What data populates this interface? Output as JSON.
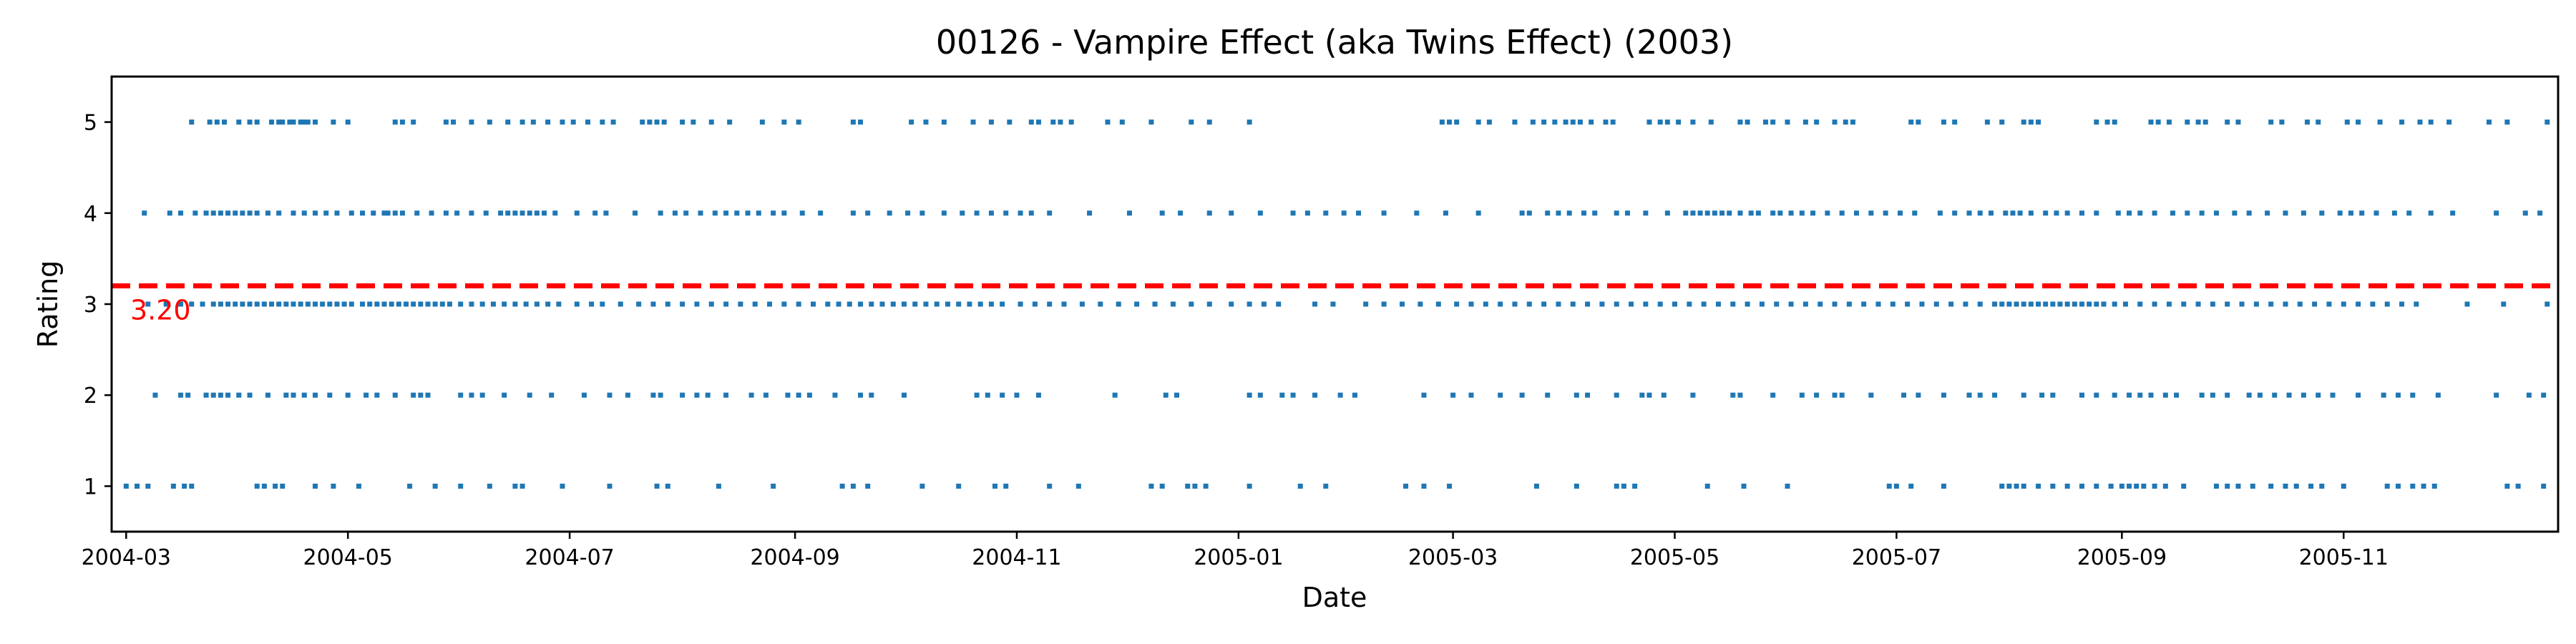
{
  "chart_data": {
    "type": "scatter",
    "title": "00126 - Vampire Effect (aka Twins Effect) (2003)",
    "xlabel": "Date",
    "ylabel": "Rating",
    "xlim": [
      "2004-02-26",
      "2005-12-30"
    ],
    "ylim": [
      0.5,
      5.5
    ],
    "x_ticks": [
      "2004-03",
      "2004-05",
      "2004-07",
      "2004-09",
      "2004-11",
      "2005-01",
      "2005-03",
      "2005-05",
      "2005-07",
      "2005-09",
      "2005-11"
    ],
    "y_ticks": [
      "1",
      "2",
      "3",
      "4",
      "5"
    ],
    "grid": false,
    "mean_line": {
      "value": 3.2,
      "label": "3.20"
    },
    "colors": {
      "points": "#1f77b4",
      "mean_line": "#ff0000"
    },
    "series": [
      {
        "y": 5,
        "x": [
          "2004-03-19",
          "2004-03-24",
          "2004-03-26",
          "2004-03-28",
          "2004-04-01",
          "2004-04-04",
          "2004-04-06",
          "2004-04-10",
          "2004-04-12",
          "2004-04-13",
          "2004-04-15",
          "2004-04-16",
          "2004-04-18",
          "2004-04-19",
          "2004-04-20",
          "2004-04-22",
          "2004-04-27",
          "2004-05-01",
          "2004-05-14",
          "2004-05-16",
          "2004-05-19",
          "2004-05-28",
          "2004-05-30",
          "2004-06-04",
          "2004-06-09",
          "2004-06-14",
          "2004-06-18",
          "2004-06-21",
          "2004-06-25",
          "2004-06-29",
          "2004-07-02",
          "2004-07-06",
          "2004-07-10",
          "2004-07-13",
          "2004-07-21",
          "2004-07-23",
          "2004-07-25",
          "2004-07-27",
          "2004-08-01",
          "2004-08-04",
          "2004-08-09",
          "2004-08-14",
          "2004-08-23",
          "2004-08-29",
          "2004-09-02",
          "2004-09-17",
          "2004-09-19",
          "2004-10-03",
          "2004-10-07",
          "2004-10-12",
          "2004-10-20",
          "2004-10-25",
          "2004-10-30",
          "2004-11-05",
          "2004-11-07",
          "2004-11-11",
          "2004-11-13",
          "2004-11-16",
          "2004-11-26",
          "2004-11-30",
          "2004-12-08",
          "2004-12-19",
          "2004-12-24",
          "2005-01-04",
          "2005-02-26",
          "2005-02-28",
          "2005-03-02",
          "2005-03-08",
          "2005-03-11",
          "2005-03-18",
          "2005-03-23",
          "2005-03-26",
          "2005-03-29",
          "2005-04-01",
          "2005-04-03",
          "2005-04-05",
          "2005-04-08",
          "2005-04-12",
          "2005-04-14",
          "2005-04-24",
          "2005-04-27",
          "2005-04-29",
          "2005-05-02",
          "2005-05-06",
          "2005-05-11",
          "2005-05-19",
          "2005-05-21",
          "2005-05-26",
          "2005-05-28",
          "2005-06-01",
          "2005-06-06",
          "2005-06-09",
          "2005-06-14",
          "2005-06-17",
          "2005-06-19",
          "2005-07-05",
          "2005-07-07",
          "2005-07-14",
          "2005-07-17",
          "2005-07-26",
          "2005-07-30",
          "2005-08-05",
          "2005-08-07",
          "2005-08-09",
          "2005-08-25",
          "2005-08-28",
          "2005-08-30",
          "2005-09-09",
          "2005-09-11",
          "2005-09-14",
          "2005-09-19",
          "2005-09-22",
          "2005-09-24",
          "2005-09-30",
          "2005-10-03",
          "2005-10-12",
          "2005-10-15",
          "2005-10-22",
          "2005-10-25",
          "2005-11-02",
          "2005-11-05",
          "2005-11-11",
          "2005-11-17",
          "2005-11-22",
          "2005-11-25",
          "2005-11-30",
          "2005-12-11",
          "2005-12-16",
          "2005-12-27"
        ]
      },
      {
        "y": 4,
        "x": [
          "2004-03-06",
          "2004-03-13",
          "2004-03-16",
          "2004-03-20",
          "2004-03-23",
          "2004-03-25",
          "2004-03-27",
          "2004-03-29",
          "2004-03-31",
          "2004-04-02",
          "2004-04-04",
          "2004-04-06",
          "2004-04-09",
          "2004-04-12",
          "2004-04-16",
          "2004-04-19",
          "2004-04-22",
          "2004-04-25",
          "2004-04-28",
          "2004-05-02",
          "2004-05-05",
          "2004-05-08",
          "2004-05-11",
          "2004-05-12",
          "2004-05-14",
          "2004-05-16",
          "2004-05-20",
          "2004-05-24",
          "2004-05-28",
          "2004-05-31",
          "2004-06-04",
          "2004-06-08",
          "2004-06-12",
          "2004-06-14",
          "2004-06-16",
          "2004-06-18",
          "2004-06-20",
          "2004-06-22",
          "2004-06-24",
          "2004-06-27",
          "2004-07-03",
          "2004-07-08",
          "2004-07-11",
          "2004-07-19",
          "2004-07-26",
          "2004-07-30",
          "2004-08-02",
          "2004-08-06",
          "2004-08-10",
          "2004-08-13",
          "2004-08-16",
          "2004-08-19",
          "2004-08-22",
          "2004-08-26",
          "2004-08-29",
          "2004-09-03",
          "2004-09-08",
          "2004-09-17",
          "2004-09-21",
          "2004-09-27",
          "2004-10-02",
          "2004-10-06",
          "2004-10-12",
          "2004-10-17",
          "2004-10-21",
          "2004-10-25",
          "2004-10-29",
          "2004-11-02",
          "2004-11-05",
          "2004-11-10",
          "2004-11-21",
          "2004-12-02",
          "2004-12-11",
          "2004-12-16",
          "2004-12-24",
          "2004-12-30",
          "2005-01-07",
          "2005-01-16",
          "2005-01-20",
          "2005-01-25",
          "2005-01-30",
          "2005-02-03",
          "2005-02-10",
          "2005-02-19",
          "2005-02-27",
          "2005-03-08",
          "2005-03-20",
          "2005-03-22",
          "2005-03-27",
          "2005-03-30",
          "2005-04-02",
          "2005-04-06",
          "2005-04-09",
          "2005-04-15",
          "2005-04-18",
          "2005-04-23",
          "2005-04-29",
          "2005-05-04",
          "2005-05-06",
          "2005-05-08",
          "2005-05-10",
          "2005-05-12",
          "2005-05-14",
          "2005-05-16",
          "2005-05-19",
          "2005-05-22",
          "2005-05-24",
          "2005-05-28",
          "2005-05-30",
          "2005-06-02",
          "2005-06-05",
          "2005-06-08",
          "2005-06-12",
          "2005-06-16",
          "2005-06-20",
          "2005-06-24",
          "2005-06-28",
          "2005-07-02",
          "2005-07-06",
          "2005-07-13",
          "2005-07-17",
          "2005-07-21",
          "2005-07-24",
          "2005-07-27",
          "2005-07-31",
          "2005-08-02",
          "2005-08-04",
          "2005-08-07",
          "2005-08-11",
          "2005-08-14",
          "2005-08-17",
          "2005-08-21",
          "2005-08-25",
          "2005-08-31",
          "2005-09-03",
          "2005-09-06",
          "2005-09-10",
          "2005-09-15",
          "2005-09-19",
          "2005-09-23",
          "2005-09-27",
          "2005-10-02",
          "2005-10-06",
          "2005-10-11",
          "2005-10-16",
          "2005-10-21",
          "2005-10-26",
          "2005-10-31",
          "2005-11-03",
          "2005-11-06",
          "2005-11-10",
          "2005-11-15",
          "2005-11-19",
          "2005-11-25",
          "2005-12-01",
          "2005-12-13",
          "2005-12-21",
          "2005-12-25"
        ]
      },
      {
        "y": 3,
        "x": [
          "2004-03-07",
          "2004-03-12",
          "2004-03-16",
          "2004-03-19",
          "2004-03-22",
          "2004-03-25",
          "2004-03-27",
          "2004-03-29",
          "2004-03-31",
          "2004-04-02",
          "2004-04-04",
          "2004-04-06",
          "2004-04-08",
          "2004-04-10",
          "2004-04-12",
          "2004-04-14",
          "2004-04-16",
          "2004-04-18",
          "2004-04-20",
          "2004-04-22",
          "2004-04-24",
          "2004-04-26",
          "2004-04-28",
          "2004-04-30",
          "2004-05-02",
          "2004-05-05",
          "2004-05-07",
          "2004-05-09",
          "2004-05-11",
          "2004-05-13",
          "2004-05-15",
          "2004-05-17",
          "2004-05-19",
          "2004-05-21",
          "2004-05-23",
          "2004-05-25",
          "2004-05-27",
          "2004-05-29",
          "2004-06-01",
          "2004-06-04",
          "2004-06-07",
          "2004-06-10",
          "2004-06-13",
          "2004-06-16",
          "2004-06-19",
          "2004-06-22",
          "2004-06-25",
          "2004-06-28",
          "2004-07-03",
          "2004-07-07",
          "2004-07-10",
          "2004-07-15",
          "2004-07-20",
          "2004-07-24",
          "2004-07-28",
          "2004-08-01",
          "2004-08-05",
          "2004-08-09",
          "2004-08-13",
          "2004-08-17",
          "2004-08-21",
          "2004-08-25",
          "2004-08-29",
          "2004-09-02",
          "2004-09-06",
          "2004-09-10",
          "2004-09-13",
          "2004-09-16",
          "2004-09-19",
          "2004-09-22",
          "2004-09-25",
          "2004-09-28",
          "2004-10-01",
          "2004-10-04",
          "2004-10-07",
          "2004-10-10",
          "2004-10-13",
          "2004-10-16",
          "2004-10-19",
          "2004-10-22",
          "2004-10-25",
          "2004-10-28",
          "2004-11-02",
          "2004-11-06",
          "2004-11-10",
          "2004-11-14",
          "2004-11-19",
          "2004-11-24",
          "2004-11-29",
          "2004-12-04",
          "2004-12-09",
          "2004-12-14",
          "2004-12-19",
          "2004-12-24",
          "2004-12-30",
          "2005-01-04",
          "2005-01-08",
          "2005-01-12",
          "2005-01-22",
          "2005-01-27",
          "2005-02-05",
          "2005-02-10",
          "2005-02-15",
          "2005-02-20",
          "2005-02-25",
          "2005-03-02",
          "2005-03-06",
          "2005-03-10",
          "2005-03-14",
          "2005-03-18",
          "2005-03-22",
          "2005-03-26",
          "2005-03-30",
          "2005-04-03",
          "2005-04-07",
          "2005-04-11",
          "2005-04-15",
          "2005-04-19",
          "2005-04-23",
          "2005-04-27",
          "2005-05-01",
          "2005-05-05",
          "2005-05-09",
          "2005-05-13",
          "2005-05-17",
          "2005-05-21",
          "2005-05-25",
          "2005-05-29",
          "2005-06-02",
          "2005-06-06",
          "2005-06-10",
          "2005-06-14",
          "2005-06-18",
          "2005-06-22",
          "2005-06-26",
          "2005-06-30",
          "2005-07-04",
          "2005-07-08",
          "2005-07-12",
          "2005-07-16",
          "2005-07-20",
          "2005-07-24",
          "2005-07-28",
          "2005-07-30",
          "2005-08-01",
          "2005-08-03",
          "2005-08-05",
          "2005-08-07",
          "2005-08-09",
          "2005-08-11",
          "2005-08-13",
          "2005-08-15",
          "2005-08-17",
          "2005-08-19",
          "2005-08-21",
          "2005-08-23",
          "2005-08-25",
          "2005-08-27",
          "2005-08-30",
          "2005-09-02",
          "2005-09-06",
          "2005-09-10",
          "2005-09-14",
          "2005-09-18",
          "2005-09-22",
          "2005-09-26",
          "2005-09-30",
          "2005-10-04",
          "2005-10-08",
          "2005-10-12",
          "2005-10-16",
          "2005-10-20",
          "2005-10-24",
          "2005-10-28",
          "2005-11-01",
          "2005-11-05",
          "2005-11-09",
          "2005-11-13",
          "2005-11-17",
          "2005-11-21",
          "2005-12-05",
          "2005-12-15",
          "2005-12-27"
        ]
      },
      {
        "y": 2,
        "x": [
          "2004-03-09",
          "2004-03-16",
          "2004-03-18",
          "2004-03-23",
          "2004-03-25",
          "2004-03-27",
          "2004-03-29",
          "2004-04-01",
          "2004-04-04",
          "2004-04-09",
          "2004-04-14",
          "2004-04-16",
          "2004-04-19",
          "2004-04-22",
          "2004-04-26",
          "2004-05-01",
          "2004-05-06",
          "2004-05-09",
          "2004-05-14",
          "2004-05-19",
          "2004-05-21",
          "2004-05-23",
          "2004-06-01",
          "2004-06-04",
          "2004-06-07",
          "2004-06-13",
          "2004-06-20",
          "2004-06-26",
          "2004-07-05",
          "2004-07-12",
          "2004-07-17",
          "2004-07-24",
          "2004-07-26",
          "2004-08-01",
          "2004-08-05",
          "2004-08-08",
          "2004-08-13",
          "2004-08-20",
          "2004-08-24",
          "2004-08-30",
          "2004-09-02",
          "2004-09-05",
          "2004-09-12",
          "2004-09-19",
          "2004-09-22",
          "2004-10-01",
          "2004-10-21",
          "2004-10-24",
          "2004-10-28",
          "2004-11-01",
          "2004-11-07",
          "2004-11-28",
          "2004-12-12",
          "2004-12-15",
          "2005-01-04",
          "2005-01-07",
          "2005-01-13",
          "2005-01-16",
          "2005-01-22",
          "2005-01-29",
          "2005-02-02",
          "2005-02-21",
          "2005-03-01",
          "2005-03-06",
          "2005-03-14",
          "2005-03-20",
          "2005-03-27",
          "2005-04-04",
          "2005-04-07",
          "2005-04-15",
          "2005-04-22",
          "2005-04-24",
          "2005-04-28",
          "2005-05-06",
          "2005-05-17",
          "2005-05-19",
          "2005-05-28",
          "2005-06-05",
          "2005-06-09",
          "2005-06-14",
          "2005-06-16",
          "2005-06-24",
          "2005-07-03",
          "2005-07-07",
          "2005-07-14",
          "2005-07-21",
          "2005-07-24",
          "2005-07-28",
          "2005-08-05",
          "2005-08-10",
          "2005-08-13",
          "2005-08-21",
          "2005-08-25",
          "2005-08-30",
          "2005-09-03",
          "2005-09-06",
          "2005-09-09",
          "2005-09-13",
          "2005-09-16",
          "2005-09-23",
          "2005-09-26",
          "2005-09-30",
          "2005-10-06",
          "2005-10-09",
          "2005-10-13",
          "2005-10-17",
          "2005-10-21",
          "2005-10-25",
          "2005-10-29",
          "2005-11-05",
          "2005-11-12",
          "2005-11-16",
          "2005-11-20",
          "2005-11-27",
          "2005-12-13",
          "2005-12-22",
          "2005-12-26"
        ]
      },
      {
        "y": 1,
        "x": [
          "2004-03-01",
          "2004-03-04",
          "2004-03-07",
          "2004-03-14",
          "2004-03-17",
          "2004-03-19",
          "2004-04-06",
          "2004-04-08",
          "2004-04-11",
          "2004-04-13",
          "2004-04-22",
          "2004-04-27",
          "2004-05-04",
          "2004-05-18",
          "2004-05-25",
          "2004-06-01",
          "2004-06-09",
          "2004-06-16",
          "2004-06-18",
          "2004-06-29",
          "2004-07-12",
          "2004-07-25",
          "2004-07-28",
          "2004-08-11",
          "2004-08-26",
          "2004-09-14",
          "2004-09-17",
          "2004-09-21",
          "2004-10-06",
          "2004-10-16",
          "2004-10-26",
          "2004-10-29",
          "2004-11-10",
          "2004-11-18",
          "2004-12-08",
          "2004-12-11",
          "2004-12-18",
          "2004-12-20",
          "2004-12-23",
          "2005-01-04",
          "2005-01-18",
          "2005-01-25",
          "2005-02-16",
          "2005-02-21",
          "2005-02-28",
          "2005-03-24",
          "2005-04-04",
          "2005-04-15",
          "2005-04-17",
          "2005-04-20",
          "2005-05-10",
          "2005-05-20",
          "2005-06-01",
          "2005-06-29",
          "2005-07-01",
          "2005-07-05",
          "2005-07-14",
          "2005-07-30",
          "2005-08-01",
          "2005-08-03",
          "2005-08-05",
          "2005-08-09",
          "2005-08-13",
          "2005-08-17",
          "2005-08-21",
          "2005-08-25",
          "2005-08-29",
          "2005-09-01",
          "2005-09-03",
          "2005-09-05",
          "2005-09-07",
          "2005-09-10",
          "2005-09-13",
          "2005-09-18",
          "2005-09-27",
          "2005-09-30",
          "2005-10-03",
          "2005-10-07",
          "2005-10-12",
          "2005-10-16",
          "2005-10-19",
          "2005-10-23",
          "2005-10-26",
          "2005-11-01",
          "2005-11-13",
          "2005-11-16",
          "2005-11-20",
          "2005-11-23",
          "2005-11-26",
          "2005-12-16",
          "2005-12-19",
          "2005-12-26"
        ]
      }
    ]
  }
}
